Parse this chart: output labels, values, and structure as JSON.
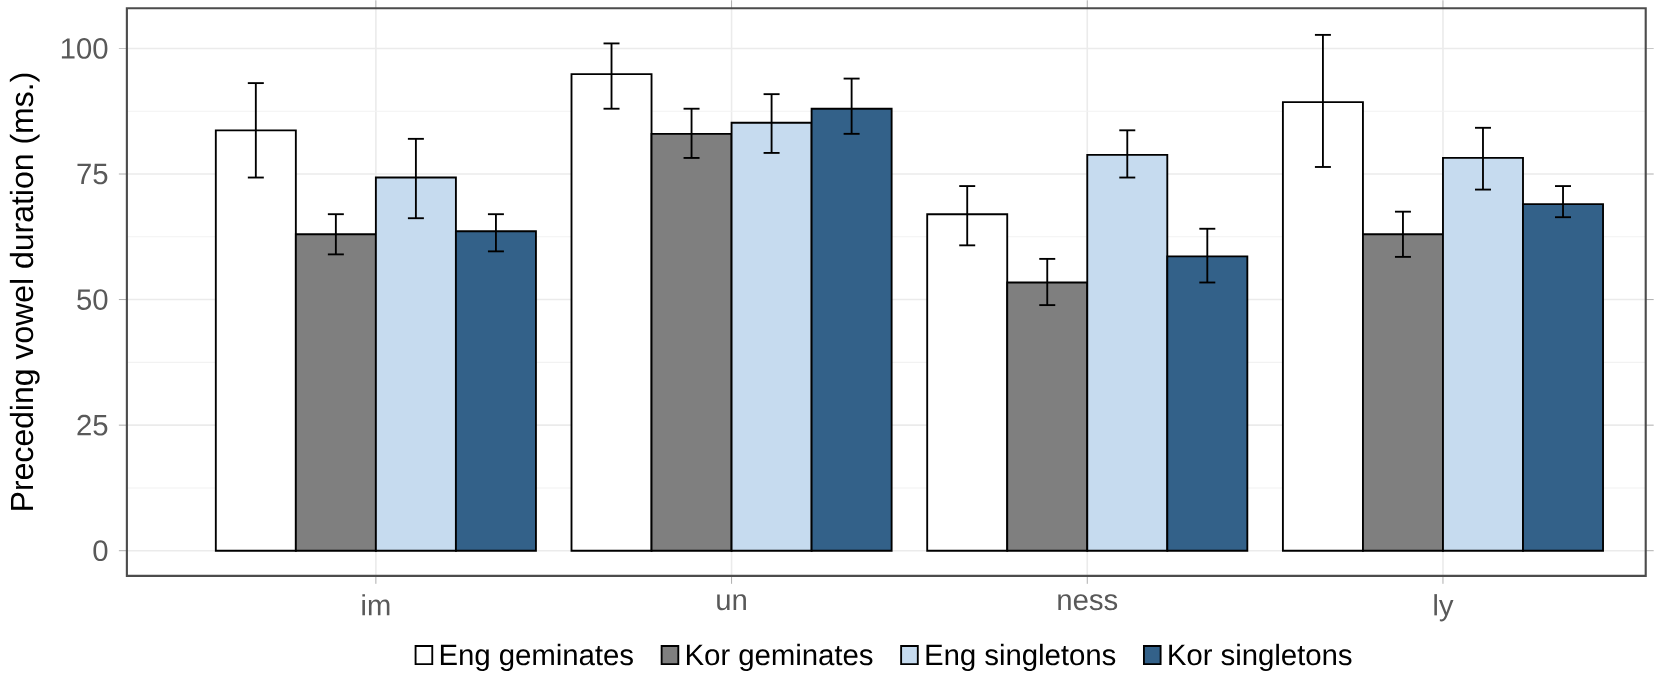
{
  "chart_data": {
    "type": "bar",
    "ylabel": "Preceding vowel duration (ms.)",
    "categories": [
      "im",
      "un",
      "ness",
      "ly"
    ],
    "series": [
      {
        "name": "Eng geminates",
        "color": "#ffffff",
        "values": [
          83.7,
          94.9,
          67.0,
          89.3
        ],
        "errors": [
          [
            74.3,
            93.1
          ],
          [
            88.0,
            101.0
          ],
          [
            60.8,
            72.6
          ],
          [
            76.4,
            102.7
          ]
        ]
      },
      {
        "name": "Kor geminates",
        "color": "#7f7f7f",
        "values": [
          63.0,
          83.0,
          53.4,
          63.0
        ],
        "errors": [
          [
            59.0,
            67.0
          ],
          [
            78.2,
            88.0
          ],
          [
            48.9,
            58.1
          ],
          [
            58.5,
            67.5
          ]
        ]
      },
      {
        "name": "Eng singletons",
        "color": "#c6dbef",
        "values": [
          74.3,
          85.2,
          78.8,
          78.2
        ],
        "errors": [
          [
            66.2,
            82.0
          ],
          [
            79.2,
            90.9
          ],
          [
            74.3,
            83.7
          ],
          [
            71.9,
            84.2
          ]
        ]
      },
      {
        "name": "Kor singletons",
        "color": "#336189",
        "values": [
          63.6,
          88.0,
          58.6,
          69.0
        ],
        "errors": [
          [
            59.6,
            67.0
          ],
          [
            83.0,
            94.0
          ],
          [
            53.4,
            64.1
          ],
          [
            66.4,
            72.6
          ]
        ]
      }
    ],
    "ylim": [
      -5,
      108
    ],
    "yticks": [
      0,
      25,
      50,
      75,
      100
    ],
    "grid": true,
    "legend": "bottom"
  }
}
